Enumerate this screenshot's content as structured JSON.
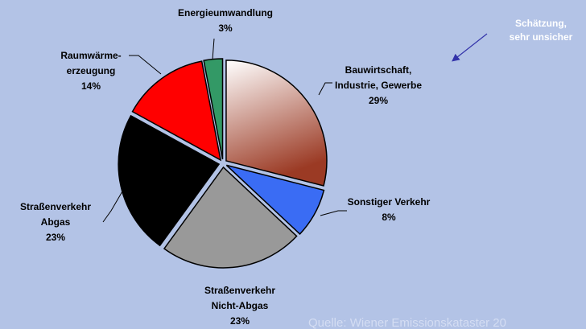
{
  "chart_data": {
    "type": "pie",
    "categories": [
      [
        "Bauwirtschaft,",
        "Industrie, Gewerbe"
      ],
      [
        "Sonstiger Verkehr"
      ],
      [
        "Straßenverkehr",
        "Nicht-Abgas"
      ],
      [
        "Straßenverkehr",
        "Abgas"
      ],
      [
        "Raumwärme-",
        "erzeugung"
      ],
      [
        "Energieumwandlung"
      ]
    ],
    "values": [
      29,
      8,
      23,
      23,
      14,
      3
    ],
    "value_labels": [
      "29%",
      "8%",
      "23%",
      "23%",
      "14%",
      "3%"
    ],
    "colors": [
      "#9b3a24",
      "#3a6cf4",
      "#999999",
      "#000000",
      "#ff0000",
      "#339966"
    ],
    "note": [
      "Schätzung,",
      "sehr unsicher"
    ],
    "source": "Quelle: Wiener Emissionskataster 20"
  }
}
